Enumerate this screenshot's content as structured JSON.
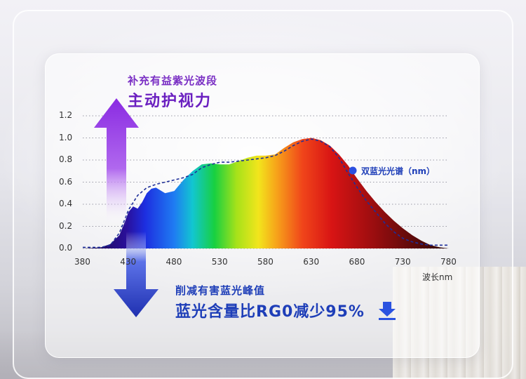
{
  "headline_top": {
    "subtitle": "补充有益紫光波段",
    "title": "主动护视力"
  },
  "headline_bottom": {
    "subtitle": "削减有害蓝光峰值",
    "title": "蓝光含量比RG0减少95%"
  },
  "colors": {
    "up_arrow": "#8a2be2",
    "down_arrow": "#2338b8",
    "dashed_series": "#1e2f9a",
    "legend_dot": "#2c4fe0"
  },
  "chart_data": {
    "type": "area",
    "xlabel": "波长nm",
    "ylabel": "",
    "xlim": [
      380,
      780
    ],
    "ylim": [
      0,
      1.2
    ],
    "x_ticks": [
      380,
      430,
      480,
      530,
      580,
      630,
      680,
      730,
      780
    ],
    "y_ticks": [
      "0.0",
      "0.2",
      "0.4",
      "0.6",
      "0.8",
      "1.0",
      "1.2"
    ],
    "grid": "horizontal-dotted",
    "series": [
      {
        "style": "filled-spectrum-gradient",
        "x": [
          380,
          400,
          410,
          420,
          425,
          430,
          435,
          440,
          445,
          450,
          455,
          460,
          470,
          480,
          490,
          500,
          510,
          520,
          530,
          540,
          550,
          560,
          570,
          580,
          590,
          600,
          610,
          620,
          630,
          640,
          650,
          660,
          670,
          680,
          690,
          700,
          710,
          720,
          730,
          740,
          750,
          760,
          770,
          780
        ],
        "y": [
          0,
          0.01,
          0.04,
          0.12,
          0.22,
          0.33,
          0.38,
          0.36,
          0.42,
          0.5,
          0.54,
          0.55,
          0.5,
          0.52,
          0.62,
          0.7,
          0.76,
          0.77,
          0.76,
          0.76,
          0.79,
          0.82,
          0.84,
          0.84,
          0.85,
          0.91,
          0.96,
          0.99,
          1.0,
          0.98,
          0.93,
          0.85,
          0.75,
          0.63,
          0.52,
          0.42,
          0.33,
          0.25,
          0.18,
          0.12,
          0.07,
          0.03,
          0.01,
          0
        ]
      },
      {
        "name": "双蓝光光谱（nm）",
        "style": "dashed",
        "x": [
          380,
          400,
          410,
          420,
          430,
          440,
          450,
          460,
          470,
          480,
          490,
          500,
          510,
          520,
          530,
          540,
          550,
          560,
          570,
          580,
          590,
          600,
          610,
          620,
          630,
          640,
          650,
          660,
          670,
          680,
          690,
          700,
          710,
          720,
          730,
          740,
          750,
          760,
          770,
          780
        ],
        "y": [
          0.01,
          0.01,
          0.03,
          0.14,
          0.35,
          0.48,
          0.55,
          0.58,
          0.6,
          0.62,
          0.64,
          0.67,
          0.73,
          0.76,
          0.78,
          0.78,
          0.79,
          0.8,
          0.81,
          0.82,
          0.84,
          0.88,
          0.93,
          0.97,
          0.99,
          0.97,
          0.92,
          0.82,
          0.68,
          0.55,
          0.43,
          0.33,
          0.23,
          0.15,
          0.09,
          0.06,
          0.04,
          0.03,
          0.03,
          0.03
        ]
      }
    ]
  }
}
